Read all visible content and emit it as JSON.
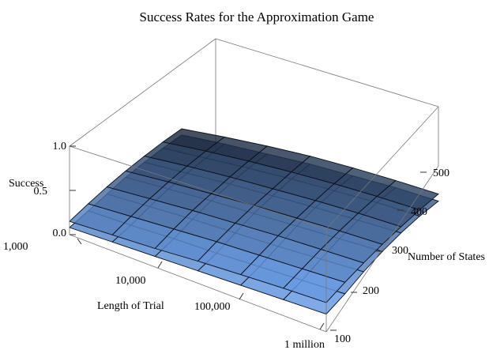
{
  "chart_data": {
    "type": "surface3d",
    "title": "Success Rates for the Approximation Game",
    "xlabel": "Length of Trial",
    "ylabel": "Number of States",
    "zlabel": "Success",
    "x_scale": "log",
    "x_ticks": [
      1000,
      10000,
      100000,
      1000000
    ],
    "x_tick_labels": [
      "1,000",
      "10,000",
      "100,000",
      "1 million"
    ],
    "y_ticks": [
      100,
      200,
      300,
      400,
      500
    ],
    "y_tick_labels": [
      "100",
      "200",
      "300",
      "400",
      "500"
    ],
    "z_ticks": [
      0,
      0.5,
      1
    ],
    "z_tick_labels": [
      "0.0",
      "0.5",
      "1.0"
    ],
    "xlim": [
      1000,
      1000000
    ],
    "ylim": [
      100,
      550
    ],
    "zlim": [
      0,
      1
    ],
    "grid": false,
    "surface_color": "#6a9ee8",
    "edge_color": "#0a0f1a",
    "x": [
      1000,
      3162,
      10000,
      31623,
      100000,
      316228,
      1000000
    ],
    "y": [
      100,
      175,
      250,
      325,
      400,
      475,
      550
    ],
    "series": [
      {
        "z": [
          [
            0.08,
            0.1,
            0.12,
            0.14,
            0.16,
            0.18,
            0.2
          ],
          [
            0.14,
            0.16,
            0.19,
            0.21,
            0.24,
            0.27,
            0.3
          ],
          [
            0.2,
            0.24,
            0.28,
            0.31,
            0.34,
            0.38,
            0.42
          ],
          [
            0.26,
            0.31,
            0.36,
            0.4,
            0.44,
            0.48,
            0.52
          ],
          [
            0.3,
            0.36,
            0.42,
            0.47,
            0.52,
            0.56,
            0.6
          ],
          [
            0.33,
            0.4,
            0.47,
            0.53,
            0.58,
            0.63,
            0.66
          ],
          [
            0.35,
            0.43,
            0.5,
            0.57,
            0.62,
            0.67,
            0.7
          ]
        ]
      },
      {
        "z": [
          [
            0.15,
            0.18,
            0.21,
            0.25,
            0.28,
            0.31,
            0.33
          ],
          [
            0.22,
            0.26,
            0.3,
            0.34,
            0.37,
            0.4,
            0.43
          ],
          [
            0.28,
            0.33,
            0.38,
            0.42,
            0.46,
            0.49,
            0.52
          ],
          [
            0.33,
            0.39,
            0.44,
            0.49,
            0.53,
            0.57,
            0.6
          ],
          [
            0.37,
            0.44,
            0.5,
            0.55,
            0.6,
            0.64,
            0.67
          ],
          [
            0.4,
            0.48,
            0.55,
            0.61,
            0.66,
            0.7,
            0.73
          ],
          [
            0.42,
            0.51,
            0.59,
            0.66,
            0.71,
            0.75,
            0.78
          ]
        ]
      }
    ]
  }
}
